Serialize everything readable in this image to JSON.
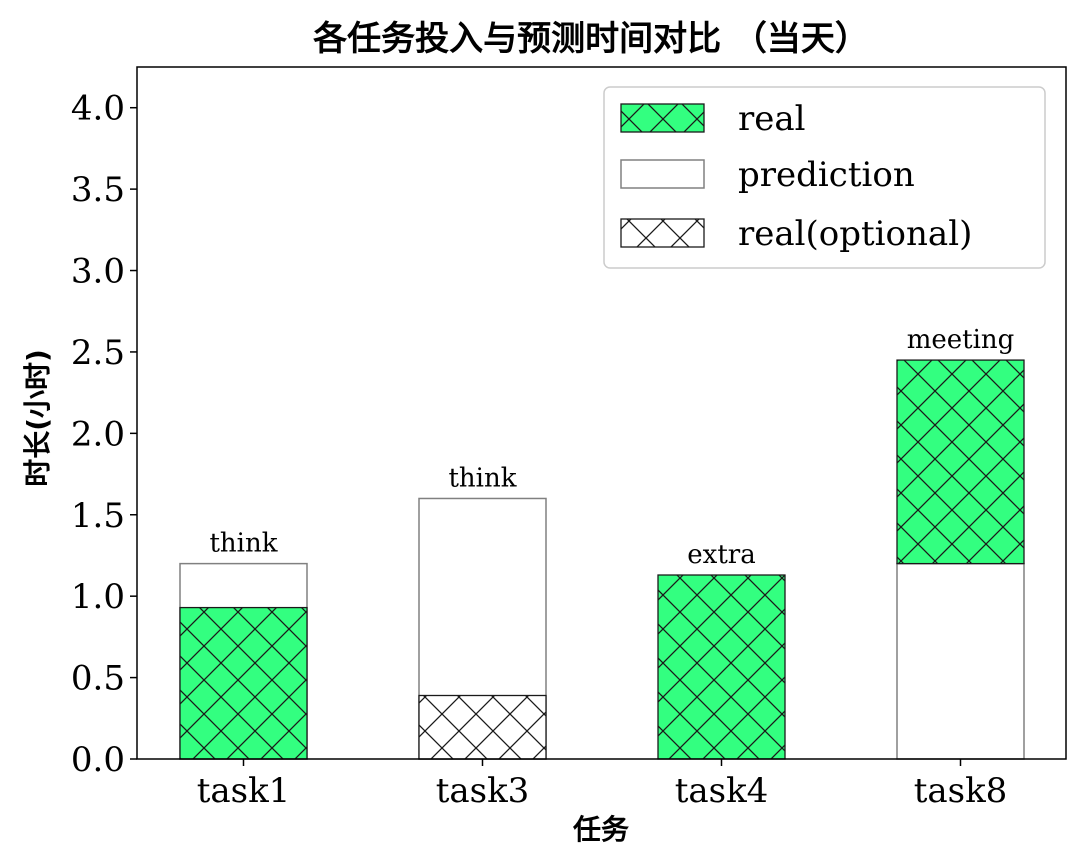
{
  "chart_data": {
    "type": "bar",
    "title": "各任务投入与预测时间对比 （当天）",
    "xlabel": "任务",
    "ylabel": "时长(小时)",
    "categories": [
      "task1",
      "task3",
      "task4",
      "task8"
    ],
    "ylim": [
      0,
      4.25
    ],
    "yticks": [
      "0.0",
      "0.5",
      "1.0",
      "1.5",
      "2.0",
      "2.5",
      "3.0",
      "3.5",
      "4.0"
    ],
    "series": [
      {
        "name": "real",
        "values": [
          0.93,
          0,
          1.13,
          1.25
        ],
        "base": [
          0,
          0,
          0,
          1.2
        ],
        "style": "green-hatched",
        "color": "#33ff80"
      },
      {
        "name": "prediction",
        "values": [
          1.2,
          1.6,
          0,
          1.2
        ],
        "base": [
          0,
          0,
          0,
          0
        ],
        "style": "outline",
        "color": "#808080"
      },
      {
        "name": "real(optional)",
        "values": [
          0,
          0.39,
          0,
          0
        ],
        "base": [
          0,
          0,
          0,
          0
        ],
        "style": "white-hatched",
        "color": "#ffffff"
      }
    ],
    "bar_labels": [
      "think",
      "think",
      "extra",
      "meeting"
    ],
    "legend": {
      "position": "top-right",
      "entries": [
        "real",
        "prediction",
        "real(optional)"
      ]
    },
    "grid": false
  }
}
